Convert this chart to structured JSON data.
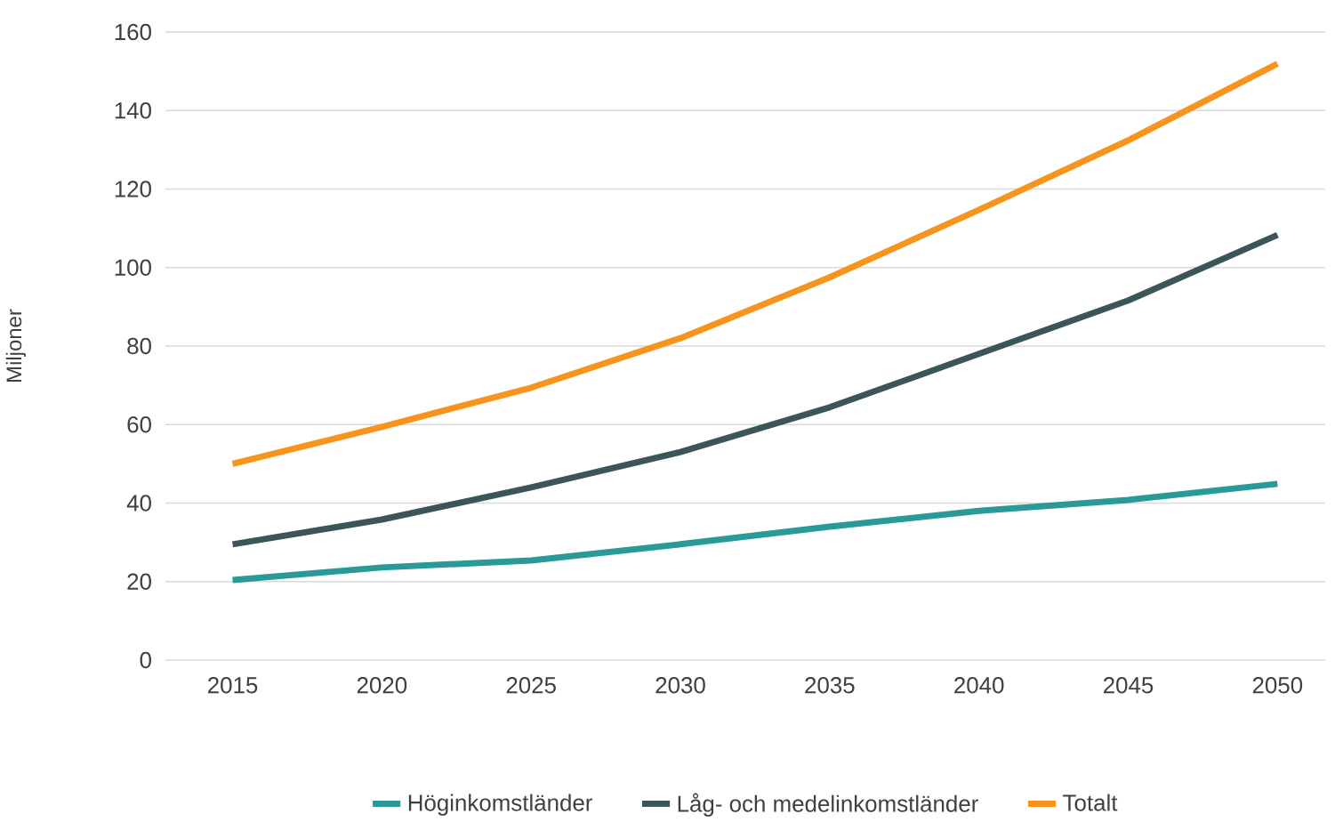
{
  "chart_data": {
    "type": "line",
    "ylabel": "Miljoner",
    "categories": [
      "2015",
      "2020",
      "2025",
      "2030",
      "2035",
      "2040",
      "2045",
      "2050"
    ],
    "series": [
      {
        "name": "Höginkomstländer",
        "color": "#2a9a98",
        "values": [
          20.4,
          23.6,
          25.4,
          29.5,
          34,
          38,
          40.8,
          44.9
        ]
      },
      {
        "name": "Låg- och medelinkomstländer",
        "color": "#3b5558",
        "values": [
          29.5,
          35.8,
          44,
          53,
          64.4,
          78,
          91.6,
          108.3
        ]
      },
      {
        "name": "Totalt",
        "color": "#f7941d",
        "values": [
          50,
          59.4,
          69.4,
          82,
          97.5,
          114.7,
          132.4,
          151.9
        ]
      }
    ],
    "ylim": [
      0,
      160
    ],
    "yticks": [
      0,
      20,
      40,
      60,
      80,
      100,
      120,
      140,
      160
    ],
    "grid": "y",
    "legend": "bottom",
    "marker": "none",
    "line_style": "solid"
  }
}
